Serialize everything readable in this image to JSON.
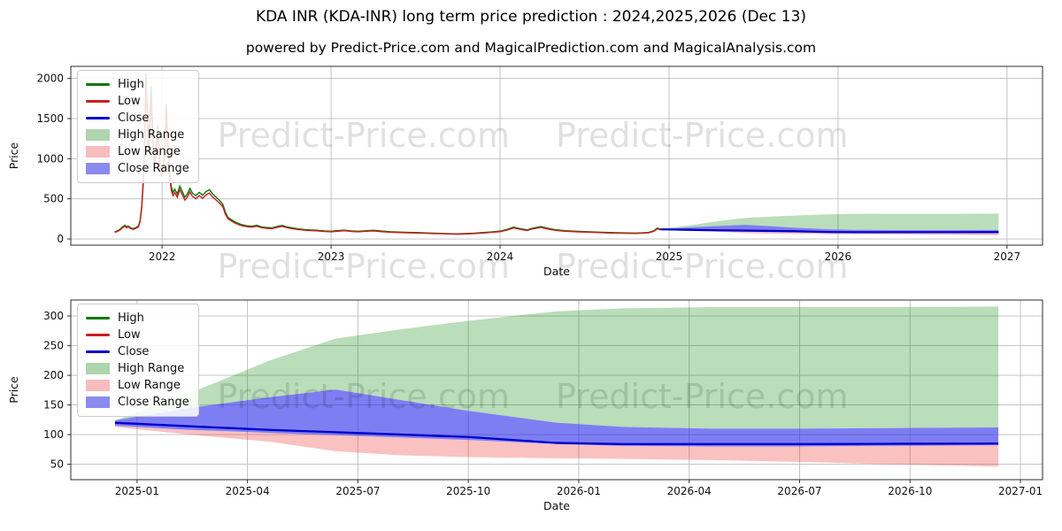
{
  "header": {
    "title": "KDA INR (KDA-INR) long term price prediction : 2024,2025,2026 (Dec 13)",
    "subtitle": "powered by Predict-Price.com and MagicalPrediction.com and MagicalAnalysis.com"
  },
  "watermark": {
    "text": "Predict-Price.com"
  },
  "legend": {
    "items": [
      {
        "label": "High",
        "type": "line",
        "color": "#077807"
      },
      {
        "label": "Low",
        "type": "line",
        "color": "#cc1d1d"
      },
      {
        "label": "Close",
        "type": "line",
        "color": "#0000cc"
      },
      {
        "label": "High Range",
        "type": "patch",
        "color": "#aed5ae"
      },
      {
        "label": "Low Range",
        "type": "patch",
        "color": "#f7bcbc"
      },
      {
        "label": "Close Range",
        "type": "patch",
        "color": "#8a8aef"
      }
    ]
  },
  "chart_data": {
    "type": "line",
    "colors": {
      "high": "#077807",
      "low": "#cc1d1d",
      "close": "#0000cc",
      "high_range": "rgba(0,128,0,0.27)",
      "low_range": "rgba(238,51,51,0.30)",
      "close_range": "rgba(40,40,235,0.60)",
      "grid": "#bdbdbd",
      "spine": "#2b2b2b"
    },
    "history_high": [
      [
        2021.72,
        88
      ],
      [
        2021.735,
        100
      ],
      [
        2021.75,
        118
      ],
      [
        2021.765,
        148
      ],
      [
        2021.78,
        172
      ],
      [
        2021.79,
        150
      ],
      [
        2021.8,
        162
      ],
      [
        2021.815,
        138
      ],
      [
        2021.83,
        128
      ],
      [
        2021.845,
        142
      ],
      [
        2021.86,
        160
      ],
      [
        2021.87,
        230
      ],
      [
        2021.88,
        420
      ],
      [
        2021.89,
        780
      ],
      [
        2021.898,
        1280
      ],
      [
        2021.905,
        2070
      ],
      [
        2021.912,
        1620
      ],
      [
        2021.92,
        1150
      ],
      [
        2021.928,
        1500
      ],
      [
        2021.935,
        1900
      ],
      [
        2021.945,
        1280
      ],
      [
        2021.955,
        950
      ],
      [
        2021.965,
        1180
      ],
      [
        2021.975,
        1420
      ],
      [
        2021.985,
        1020
      ],
      [
        2021.995,
        840
      ],
      [
        2022.005,
        900
      ],
      [
        2022.015,
        1100
      ],
      [
        2022.025,
        1680
      ],
      [
        2022.035,
        1150
      ],
      [
        2022.045,
        820
      ],
      [
        2022.055,
        650
      ],
      [
        2022.065,
        580
      ],
      [
        2022.075,
        620
      ],
      [
        2022.09,
        560
      ],
      [
        2022.105,
        660
      ],
      [
        2022.12,
        590
      ],
      [
        2022.135,
        520
      ],
      [
        2022.15,
        560
      ],
      [
        2022.165,
        630
      ],
      [
        2022.18,
        570
      ],
      [
        2022.2,
        540
      ],
      [
        2022.22,
        580
      ],
      [
        2022.24,
        545
      ],
      [
        2022.26,
        590
      ],
      [
        2022.28,
        615
      ],
      [
        2022.3,
        560
      ],
      [
        2022.32,
        520
      ],
      [
        2022.34,
        480
      ],
      [
        2022.36,
        430
      ],
      [
        2022.375,
        330
      ],
      [
        2022.39,
        270
      ],
      [
        2022.41,
        240
      ],
      [
        2022.43,
        215
      ],
      [
        2022.45,
        195
      ],
      [
        2022.47,
        178
      ],
      [
        2022.5,
        165
      ],
      [
        2022.53,
        158
      ],
      [
        2022.56,
        170
      ],
      [
        2022.59,
        150
      ],
      [
        2022.62,
        142
      ],
      [
        2022.65,
        138
      ],
      [
        2022.68,
        155
      ],
      [
        2022.71,
        168
      ],
      [
        2022.74,
        150
      ],
      [
        2022.77,
        138
      ],
      [
        2022.8,
        128
      ],
      [
        2022.84,
        118
      ],
      [
        2022.88,
        112
      ],
      [
        2022.92,
        108
      ],
      [
        2022.96,
        100
      ],
      [
        2023.0,
        96
      ],
      [
        2023.04,
        104
      ],
      [
        2023.08,
        110
      ],
      [
        2023.12,
        100
      ],
      [
        2023.16,
        96
      ],
      [
        2023.2,
        102
      ],
      [
        2023.25,
        108
      ],
      [
        2023.3,
        98
      ],
      [
        2023.35,
        90
      ],
      [
        2023.4,
        86
      ],
      [
        2023.45,
        82
      ],
      [
        2023.5,
        80
      ],
      [
        2023.55,
        76
      ],
      [
        2023.6,
        72
      ],
      [
        2023.65,
        70
      ],
      [
        2023.7,
        66
      ],
      [
        2023.75,
        64
      ],
      [
        2023.8,
        68
      ],
      [
        2023.85,
        72
      ],
      [
        2023.9,
        80
      ],
      [
        2023.95,
        88
      ],
      [
        2024.0,
        98
      ],
      [
        2024.04,
        118
      ],
      [
        2024.08,
        148
      ],
      [
        2024.12,
        128
      ],
      [
        2024.16,
        114
      ],
      [
        2024.2,
        138
      ],
      [
        2024.24,
        155
      ],
      [
        2024.28,
        135
      ],
      [
        2024.32,
        118
      ],
      [
        2024.36,
        108
      ],
      [
        2024.4,
        102
      ],
      [
        2024.45,
        96
      ],
      [
        2024.5,
        92
      ],
      [
        2024.55,
        88
      ],
      [
        2024.6,
        84
      ],
      [
        2024.65,
        80
      ],
      [
        2024.7,
        78
      ],
      [
        2024.75,
        75
      ],
      [
        2024.8,
        74
      ],
      [
        2024.84,
        76
      ],
      [
        2024.88,
        82
      ],
      [
        2024.91,
        102
      ],
      [
        2024.93,
        135
      ],
      [
        2024.95,
        122
      ]
    ],
    "prediction": {
      "x": [
        2024.95,
        2025.12,
        2025.3,
        2025.45,
        2025.6,
        2025.75,
        2025.95,
        2026.1,
        2026.3,
        2026.5,
        2026.7,
        2026.95
      ],
      "close": [
        120,
        114,
        108,
        104,
        100,
        96,
        86,
        84,
        84,
        84,
        84.5,
        85
      ],
      "high_top": [
        124,
        170,
        225,
        262,
        278,
        292,
        308,
        313,
        315,
        315,
        315,
        316
      ],
      "close_top": [
        124,
        145,
        163,
        176,
        158,
        140,
        120,
        113,
        110,
        110,
        111,
        112
      ],
      "close_bot": [
        115,
        108,
        103,
        99,
        95,
        91,
        84,
        81,
        80,
        80,
        81,
        82
      ],
      "low_bot": [
        113,
        100,
        88,
        72,
        65,
        62,
        60,
        59,
        57,
        54,
        50,
        46
      ]
    },
    "charts": [
      {
        "id": "top",
        "xlabel": "Date",
        "ylabel": "Price",
        "xlim": [
          2021.46,
          2027.21
        ],
        "ylim": [
          -77,
          2150
        ],
        "xticks": [
          {
            "v": 2022,
            "label": "2022"
          },
          {
            "v": 2023,
            "label": "2023"
          },
          {
            "v": 2024,
            "label": "2024"
          },
          {
            "v": 2025,
            "label": "2025"
          },
          {
            "v": 2026,
            "label": "2026"
          },
          {
            "v": 2027,
            "label": "2027"
          }
        ],
        "yticks": [
          0,
          500,
          1000,
          1500,
          2000
        ],
        "show_history": true
      },
      {
        "id": "bottom",
        "xlabel": "Date",
        "ylabel": "Price",
        "xlim": [
          2024.85,
          2027.05
        ],
        "ylim": [
          24,
          327
        ],
        "xticks": [
          {
            "v": 2025.0,
            "label": "2025-01"
          },
          {
            "v": 2025.25,
            "label": "2025-04"
          },
          {
            "v": 2025.5,
            "label": "2025-07"
          },
          {
            "v": 2025.75,
            "label": "2025-10"
          },
          {
            "v": 2026.0,
            "label": "2026-01"
          },
          {
            "v": 2026.25,
            "label": "2026-04"
          },
          {
            "v": 2026.5,
            "label": "2026-07"
          },
          {
            "v": 2026.75,
            "label": "2026-10"
          },
          {
            "v": 2027.0,
            "label": "2027-01"
          }
        ],
        "yticks": [
          50,
          100,
          150,
          200,
          250,
          300
        ],
        "show_history": false
      }
    ]
  }
}
